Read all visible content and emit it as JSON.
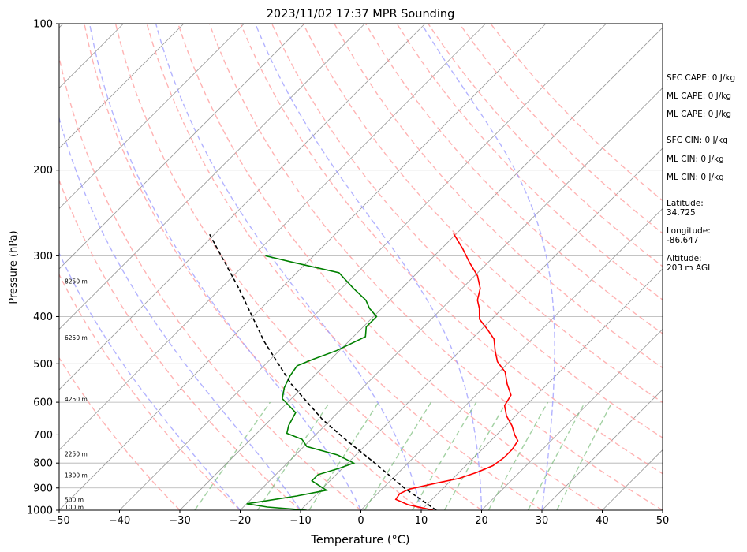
{
  "chart_data": {
    "type": "line",
    "skew_t": true,
    "title": "2023/11/02 17:37 MPR Sounding",
    "xlabel": "Temperature (°C)",
    "ylabel": "Pressure (hPa)",
    "xlim": [
      -50,
      50
    ],
    "ylim": [
      1000,
      100
    ],
    "y_scale": "log",
    "x_ticks": [
      "−50",
      "−40",
      "−30",
      "−20",
      "−10",
      "0",
      "10",
      "20",
      "30",
      "40",
      "50"
    ],
    "y_ticks": [
      "100",
      "200",
      "300",
      "400",
      "500",
      "600",
      "700",
      "800",
      "900",
      "1000"
    ],
    "height_labels": [
      {
        "p": 1000,
        "text": "100 m"
      },
      {
        "p": 965,
        "text": "500 m"
      },
      {
        "p": 860,
        "text": "1300 m"
      },
      {
        "p": 778,
        "text": "2250 m"
      },
      {
        "p": 600,
        "text": "4250 m"
      },
      {
        "p": 448,
        "text": "6250 m"
      },
      {
        "p": 343,
        "text": "8250 m"
      }
    ],
    "series": [
      {
        "role": "temperature",
        "color": "#ff0000",
        "points": [
          {
            "p": 1000,
            "t": 12.0
          },
          {
            "p": 990,
            "t": 10.0
          },
          {
            "p": 975,
            "t": 7.0
          },
          {
            "p": 950,
            "t": 4.0
          },
          {
            "p": 925,
            "t": 3.7
          },
          {
            "p": 905,
            "t": 4.5
          },
          {
            "p": 880,
            "t": 8.0
          },
          {
            "p": 860,
            "t": 11.0
          },
          {
            "p": 835,
            "t": 13.0
          },
          {
            "p": 810,
            "t": 14.5
          },
          {
            "p": 780,
            "t": 15.0
          },
          {
            "p": 750,
            "t": 15.0
          },
          {
            "p": 720,
            "t": 14.5
          },
          {
            "p": 700,
            "t": 13.0
          },
          {
            "p": 670,
            "t": 11.0
          },
          {
            "p": 640,
            "t": 8.5
          },
          {
            "p": 610,
            "t": 6.5
          },
          {
            "p": 580,
            "t": 5.8
          },
          {
            "p": 550,
            "t": 3.3
          },
          {
            "p": 520,
            "t": 1.0
          },
          {
            "p": 495,
            "t": -2.0
          },
          {
            "p": 470,
            "t": -4.2
          },
          {
            "p": 445,
            "t": -6.3
          },
          {
            "p": 425,
            "t": -9.0
          },
          {
            "p": 405,
            "t": -12.0
          },
          {
            "p": 385,
            "t": -13.8
          },
          {
            "p": 370,
            "t": -15.5
          },
          {
            "p": 350,
            "t": -17.0
          },
          {
            "p": 330,
            "t": -19.5
          },
          {
            "p": 310,
            "t": -23.0
          },
          {
            "p": 290,
            "t": -26.5
          },
          {
            "p": 270,
            "t": -30.5
          }
        ]
      },
      {
        "role": "dewpoint",
        "color": "#008000",
        "points": [
          {
            "p": 1000,
            "t": -9.0
          },
          {
            "p": 985,
            "t": -16.0
          },
          {
            "p": 970,
            "t": -20.0
          },
          {
            "p": 955,
            "t": -17.0
          },
          {
            "p": 935,
            "t": -13.0
          },
          {
            "p": 910,
            "t": -9.0
          },
          {
            "p": 890,
            "t": -11.0
          },
          {
            "p": 870,
            "t": -13.0
          },
          {
            "p": 845,
            "t": -13.0
          },
          {
            "p": 820,
            "t": -10.5
          },
          {
            "p": 800,
            "t": -9.0
          },
          {
            "p": 770,
            "t": -13.0
          },
          {
            "p": 740,
            "t": -19.5
          },
          {
            "p": 715,
            "t": -21.5
          },
          {
            "p": 695,
            "t": -25.0
          },
          {
            "p": 670,
            "t": -26.0
          },
          {
            "p": 630,
            "t": -27.0
          },
          {
            "p": 590,
            "t": -31.5
          },
          {
            "p": 560,
            "t": -33.0
          },
          {
            "p": 530,
            "t": -34.0
          },
          {
            "p": 505,
            "t": -34.5
          },
          {
            "p": 490,
            "t": -33.0
          },
          {
            "p": 470,
            "t": -30.5
          },
          {
            "p": 440,
            "t": -28.0
          },
          {
            "p": 420,
            "t": -29.5
          },
          {
            "p": 400,
            "t": -29.5
          },
          {
            "p": 385,
            "t": -32.0
          },
          {
            "p": 370,
            "t": -34.0
          },
          {
            "p": 350,
            "t": -38.0
          },
          {
            "p": 325,
            "t": -43.0
          },
          {
            "p": 310,
            "t": -52.0
          },
          {
            "p": 300,
            "t": -58.0
          }
        ]
      },
      {
        "role": "parcel",
        "color": "#000000",
        "points": [
          {
            "p": 1000,
            "t": 12.5
          },
          {
            "p": 900,
            "t": 3.5
          },
          {
            "p": 800,
            "t": -5.5
          },
          {
            "p": 720,
            "t": -13.8
          },
          {
            "p": 650,
            "t": -21.5
          },
          {
            "p": 550,
            "t": -32.5
          },
          {
            "p": 450,
            "t": -44.0
          },
          {
            "p": 350,
            "t": -57.0
          },
          {
            "p": 270,
            "t": -71.0
          }
        ]
      }
    ],
    "dry_adiabats_theta_c": [
      -30,
      -20,
      -10,
      0,
      10,
      20,
      30,
      40,
      50,
      60,
      70,
      80,
      90,
      100,
      110,
      120,
      130,
      140
    ],
    "moist_adiabats_c": [
      -20,
      -10,
      0,
      10,
      20,
      30
    ],
    "mixing_ratios_gkg": [
      0.4,
      1,
      2,
      4,
      7,
      10,
      16,
      24,
      32
    ],
    "grid": true,
    "colors": {
      "temperature": "#ff0000",
      "dewpoint": "#008000",
      "parcel": "#000000",
      "dry_adiabat": "#ff9999",
      "moist_adiabat": "#9999ff",
      "mixing_ratio": "#66b266",
      "isotherm": "#999999"
    }
  },
  "annotations": {
    "sfc_cape": "SFC CAPE: 0 J/kg",
    "ml_cape_1": "ML CAPE: 0 J/kg",
    "ml_cape_2": "ML CAPE: 0 J/kg",
    "sfc_cin": "SFC CIN: 0 J/kg",
    "ml_cin_1": "ML CIN: 0 J/kg",
    "ml_cin_2": "ML CIN: 0 J/kg",
    "latitude_label": "Latitude:",
    "latitude_value": "34.725",
    "longitude_label": "Longitude:",
    "longitude_value": "-86.647",
    "altitude_label": "Altitude:",
    "altitude_value": "203 m AGL"
  }
}
